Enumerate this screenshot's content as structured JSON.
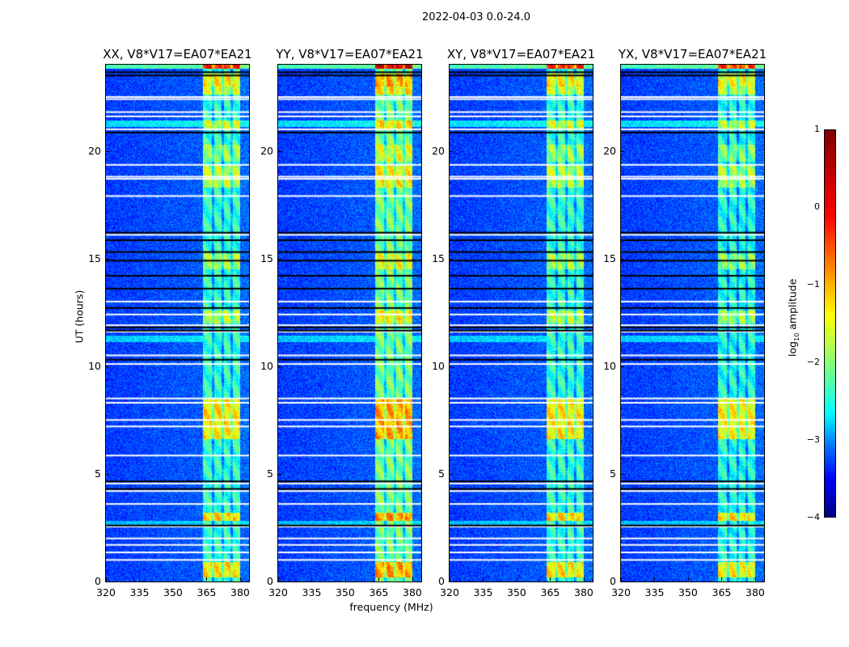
{
  "title": "2022-04-03 0.0-24.0",
  "chart_data": {
    "type": "heatmap",
    "title": "2022-04-03 0.0-24.0",
    "xlabel": "frequency (MHz)",
    "ylabel": "UT (hours)",
    "xlim": [
      320,
      384
    ],
    "ylim": [
      0,
      24
    ],
    "xticks": [
      320,
      335,
      350,
      365,
      380
    ],
    "xtick_labels": [
      "320",
      "335",
      "350",
      "365",
      "380"
    ],
    "yticks": [
      0,
      5,
      10,
      15,
      20
    ],
    "ytick_labels": [
      "0",
      "5",
      "10",
      "15",
      "20"
    ],
    "colormap": "jet",
    "color_range": [
      -4,
      1
    ],
    "colorbar": {
      "label_prefix": "log",
      "label_sub": "10",
      "label_suffix": " amplitude",
      "ticks": [
        1,
        0,
        -1,
        -2,
        -3,
        -4
      ],
      "tick_labels": [
        "1",
        "0",
        "−1",
        "−2",
        "−3",
        "−4"
      ]
    },
    "panels": [
      {
        "title": "XX, V8*V17=EA07*EA21",
        "offset": 0.0
      },
      {
        "title": "YY, V8*V17=EA07*EA21",
        "offset": 0.35
      },
      {
        "title": "XY, V8*V17=EA07*EA21",
        "offset": 0.0
      },
      {
        "title": "YX, V8*V17=EA07*EA21",
        "offset": -0.1
      }
    ],
    "background_level": -3.1,
    "band": {
      "range_mhz": [
        363.5,
        380
      ],
      "gaps_mhz": [
        367.8,
        372.3,
        376.3
      ],
      "level": -1.9
    },
    "band_events": [
      {
        "t": [
          23.8,
          24.0
        ],
        "level": 0.2
      },
      {
        "t": [
          23.0,
          23.6
        ],
        "level": -0.8
      },
      {
        "t": [
          22.6,
          23.0
        ],
        "level": -1.1
      },
      {
        "t": [
          21.0,
          21.4
        ],
        "level": -1.1
      },
      {
        "t": [
          19.5,
          20.3
        ],
        "level": -1.4
      },
      {
        "t": [
          18.3,
          19.3
        ],
        "level": -1.2
      },
      {
        "t": [
          14.5,
          15.2
        ],
        "level": -1.3
      },
      {
        "t": [
          12.0,
          12.6
        ],
        "level": -1.2
      },
      {
        "t": [
          6.6,
          8.5
        ],
        "level": -0.8
      },
      {
        "t": [
          2.8,
          3.2
        ],
        "level": -0.7
      },
      {
        "t": [
          0.2,
          0.9
        ],
        "level": -0.8
      }
    ],
    "broadband_events": [
      {
        "t": [
          23.8,
          24.0
        ],
        "level": -1.8
      },
      {
        "t": [
          21.1,
          21.4
        ],
        "level": -2.3
      },
      {
        "t": [
          11.1,
          11.4
        ],
        "level": -2.4
      },
      {
        "t": [
          2.6,
          2.8
        ],
        "level": -2.5
      }
    ],
    "flagged_times_white": [
      22.5,
      22.4,
      21.8,
      21.6,
      21.0,
      19.35,
      18.8,
      18.7,
      17.9,
      16.1,
      13.0,
      12.4,
      11.9,
      11.6,
      10.5,
      10.1,
      8.5,
      8.3,
      7.5,
      7.2,
      5.85,
      4.55,
      4.2,
      3.6,
      2.55,
      2.0,
      1.7,
      1.35,
      1.0
    ],
    "flagged_times_black": [
      23.65,
      23.5,
      20.85,
      16.2,
      15.85,
      15.3,
      14.9,
      14.2,
      13.6,
      12.7,
      11.8,
      11.65,
      10.3,
      4.65,
      4.3,
      2.6
    ]
  }
}
